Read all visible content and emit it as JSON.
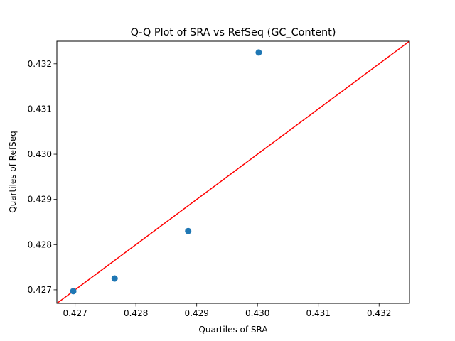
{
  "chart_data": {
    "type": "scatter",
    "title": "Q-Q Plot of SRA vs RefSeq (GC_Content)",
    "xlabel": "Quartiles of SRA",
    "ylabel": "Quartiles of RefSeq",
    "xlim": [
      0.4267,
      0.4325
    ],
    "ylim": [
      0.4267,
      0.4325
    ],
    "x_ticks": [
      0.427,
      0.428,
      0.429,
      0.43,
      0.431,
      0.432
    ],
    "x_tick_labels": [
      "0.427",
      "0.428",
      "0.429",
      "0.430",
      "0.431",
      "0.432"
    ],
    "y_ticks": [
      0.427,
      0.428,
      0.429,
      0.43,
      0.431,
      0.432
    ],
    "y_tick_labels": [
      "0.427",
      "0.428",
      "0.429",
      "0.430",
      "0.431",
      "0.432"
    ],
    "grid": false,
    "legend": "none",
    "points": {
      "x": [
        0.42697,
        0.42765,
        0.42886,
        0.43002
      ],
      "y": [
        0.42697,
        0.42725,
        0.4283,
        0.43225
      ],
      "color": "#1f77b4"
    },
    "reference_line": {
      "slope": 1,
      "intercept": 0,
      "color": "#ff0000"
    }
  }
}
